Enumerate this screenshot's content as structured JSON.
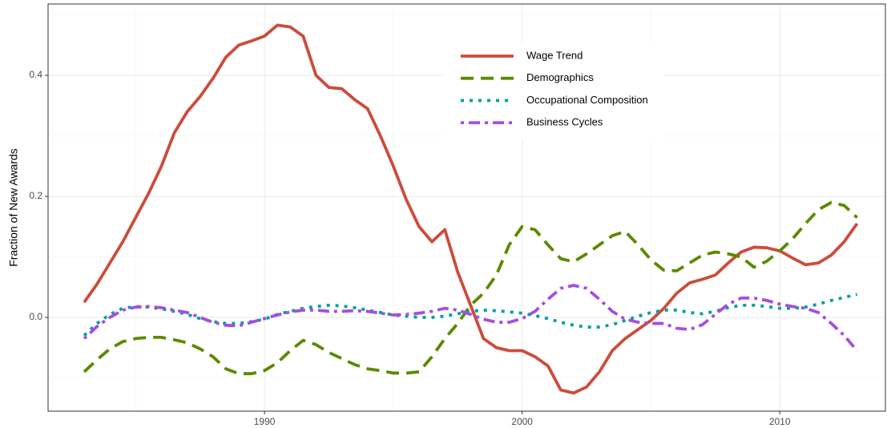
{
  "chart_data": {
    "type": "line",
    "ylabel": "Fraction of New Awards",
    "x": [
      1983,
      1983.5,
      1984,
      1984.5,
      1985,
      1985.5,
      1986,
      1986.5,
      1987,
      1987.5,
      1988,
      1988.5,
      1989,
      1989.5,
      1990,
      1990.5,
      1991,
      1991.5,
      1992,
      1992.5,
      1993,
      1993.5,
      1994,
      1994.5,
      1995,
      1995.5,
      1996,
      1996.5,
      1997,
      1997.5,
      1998,
      1998.5,
      1999,
      1999.5,
      2000,
      2000.5,
      2001,
      2001.5,
      2002,
      2002.5,
      2003,
      2003.5,
      2004,
      2004.5,
      2005,
      2005.5,
      2006,
      2006.5,
      2007,
      2007.5,
      2008,
      2008.5,
      2009,
      2009.5,
      2010,
      2010.5,
      2011,
      2011.5,
      2012,
      2012.5,
      2013
    ],
    "series": [
      {
        "name": "Wage Trend",
        "color": "#cc4c3c",
        "dash": "none",
        "values": [
          0.025,
          0.055,
          0.09,
          0.125,
          0.165,
          0.205,
          0.25,
          0.305,
          0.34,
          0.365,
          0.395,
          0.43,
          0.45,
          0.457,
          0.465,
          0.483,
          0.48,
          0.465,
          0.4,
          0.38,
          0.378,
          0.36,
          0.345,
          0.3,
          0.25,
          0.195,
          0.15,
          0.125,
          0.145,
          0.075,
          0.02,
          -0.035,
          -0.05,
          -0.055,
          -0.055,
          -0.065,
          -0.08,
          -0.12,
          -0.125,
          -0.115,
          -0.09,
          -0.055,
          -0.035,
          -0.02,
          -0.005,
          0.015,
          0.04,
          0.057,
          0.063,
          0.07,
          0.09,
          0.108,
          0.116,
          0.115,
          0.11,
          0.098,
          0.087,
          0.09,
          0.103,
          0.125,
          0.155
        ]
      },
      {
        "name": "Demographics",
        "color": "#5a8a00",
        "dash": "16 9",
        "values": [
          -0.09,
          -0.07,
          -0.052,
          -0.04,
          -0.035,
          -0.033,
          -0.033,
          -0.037,
          -0.042,
          -0.052,
          -0.065,
          -0.085,
          -0.093,
          -0.093,
          -0.088,
          -0.075,
          -0.055,
          -0.038,
          -0.045,
          -0.058,
          -0.068,
          -0.078,
          -0.085,
          -0.088,
          -0.092,
          -0.092,
          -0.09,
          -0.065,
          -0.035,
          -0.01,
          0.02,
          0.04,
          0.07,
          0.12,
          0.15,
          0.145,
          0.12,
          0.097,
          0.092,
          0.105,
          0.12,
          0.135,
          0.142,
          0.12,
          0.095,
          0.078,
          0.077,
          0.09,
          0.103,
          0.108,
          0.105,
          0.1,
          0.083,
          0.093,
          0.11,
          0.13,
          0.155,
          0.178,
          0.19,
          0.185,
          0.165
        ]
      },
      {
        "name": "Occupational Composition",
        "color": "#00a0a0",
        "dash": "4 7",
        "values": [
          -0.03,
          -0.01,
          0.005,
          0.015,
          0.018,
          0.017,
          0.014,
          0.01,
          0.005,
          -0.002,
          -0.007,
          -0.01,
          -0.01,
          -0.007,
          -0.003,
          0.005,
          0.01,
          0.015,
          0.018,
          0.02,
          0.019,
          0.016,
          0.012,
          0.008,
          0.004,
          0.002,
          0.0,
          0.0,
          0.002,
          0.006,
          0.01,
          0.012,
          0.011,
          0.009,
          0.007,
          0.003,
          -0.002,
          -0.008,
          -0.013,
          -0.016,
          -0.016,
          -0.012,
          -0.005,
          0.002,
          0.008,
          0.012,
          0.012,
          0.008,
          0.006,
          0.01,
          0.016,
          0.02,
          0.02,
          0.018,
          0.015,
          0.015,
          0.017,
          0.022,
          0.028,
          0.033,
          0.038
        ]
      },
      {
        "name": "Business Cycles",
        "color": "#a64ee0",
        "dash": "4 6 14 6",
        "values": [
          -0.035,
          -0.015,
          0.0,
          0.012,
          0.017,
          0.018,
          0.016,
          0.012,
          0.008,
          0.0,
          -0.008,
          -0.013,
          -0.014,
          -0.008,
          -0.002,
          0.004,
          0.009,
          0.012,
          0.012,
          0.01,
          0.01,
          0.011,
          0.01,
          0.007,
          0.004,
          0.005,
          0.007,
          0.01,
          0.015,
          0.012,
          0.005,
          -0.003,
          -0.008,
          -0.008,
          -0.002,
          0.01,
          0.03,
          0.048,
          0.053,
          0.048,
          0.03,
          0.01,
          -0.003,
          -0.008,
          -0.01,
          -0.01,
          -0.018,
          -0.02,
          -0.012,
          0.005,
          0.022,
          0.032,
          0.032,
          0.028,
          0.022,
          0.018,
          0.015,
          0.008,
          -0.01,
          -0.03,
          -0.055
        ]
      }
    ],
    "xlim": [
      1981.6,
      2014.1
    ],
    "xticks": [
      1990,
      2000,
      2010
    ],
    "ylim": [
      -0.155,
      0.518
    ],
    "yticks": [
      {
        "value": 0,
        "label": "0.0"
      },
      0.2,
      0.4
    ],
    "grid": true
  }
}
